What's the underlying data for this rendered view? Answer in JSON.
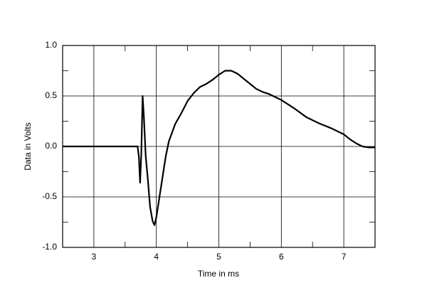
{
  "chart_data": {
    "type": "line",
    "x_label": "Time in ms",
    "y_label": "Data in Volts",
    "x": [
      2.5,
      3.7,
      3.72,
      3.74,
      3.76,
      3.78,
      3.8,
      3.83,
      3.86,
      3.9,
      3.94,
      3.97,
      4.0,
      4.05,
      4.1,
      4.15,
      4.2,
      4.3,
      4.4,
      4.5,
      4.6,
      4.7,
      4.8,
      4.9,
      5.0,
      5.1,
      5.2,
      5.3,
      5.4,
      5.5,
      5.6,
      5.7,
      5.8,
      5.9,
      6.0,
      6.2,
      6.4,
      6.6,
      6.8,
      7.0,
      7.1,
      7.2,
      7.3,
      7.4,
      7.5
    ],
    "values": [
      0,
      0,
      -0.1,
      -0.36,
      -0.05,
      0.5,
      0.3,
      -0.1,
      -0.3,
      -0.6,
      -0.74,
      -0.78,
      -0.7,
      -0.5,
      -0.3,
      -0.1,
      0.05,
      0.22,
      0.33,
      0.45,
      0.53,
      0.59,
      0.62,
      0.66,
      0.71,
      0.75,
      0.75,
      0.72,
      0.67,
      0.62,
      0.57,
      0.54,
      0.52,
      0.49,
      0.46,
      0.38,
      0.29,
      0.23,
      0.18,
      0.12,
      0.07,
      0.03,
      0.0,
      -0.01,
      -0.01
    ],
    "color": "#000000",
    "xlim": [
      2.5,
      7.5
    ],
    "xticks": [
      3,
      4,
      5,
      6,
      7
    ],
    "xminor": [
      3.5,
      4.5,
      5.5,
      6.5
    ],
    "ylim": [
      -1,
      1
    ],
    "yticks": [
      {
        "value": -1,
        "label": "-1.0"
      },
      -0.5,
      {
        "value": 0,
        "label": "0.0"
      },
      0.5,
      {
        "value": 1,
        "label": "1.0"
      }
    ],
    "yminor": [
      -0.75,
      -0.25,
      0.25,
      0.75
    ],
    "grid": true
  }
}
